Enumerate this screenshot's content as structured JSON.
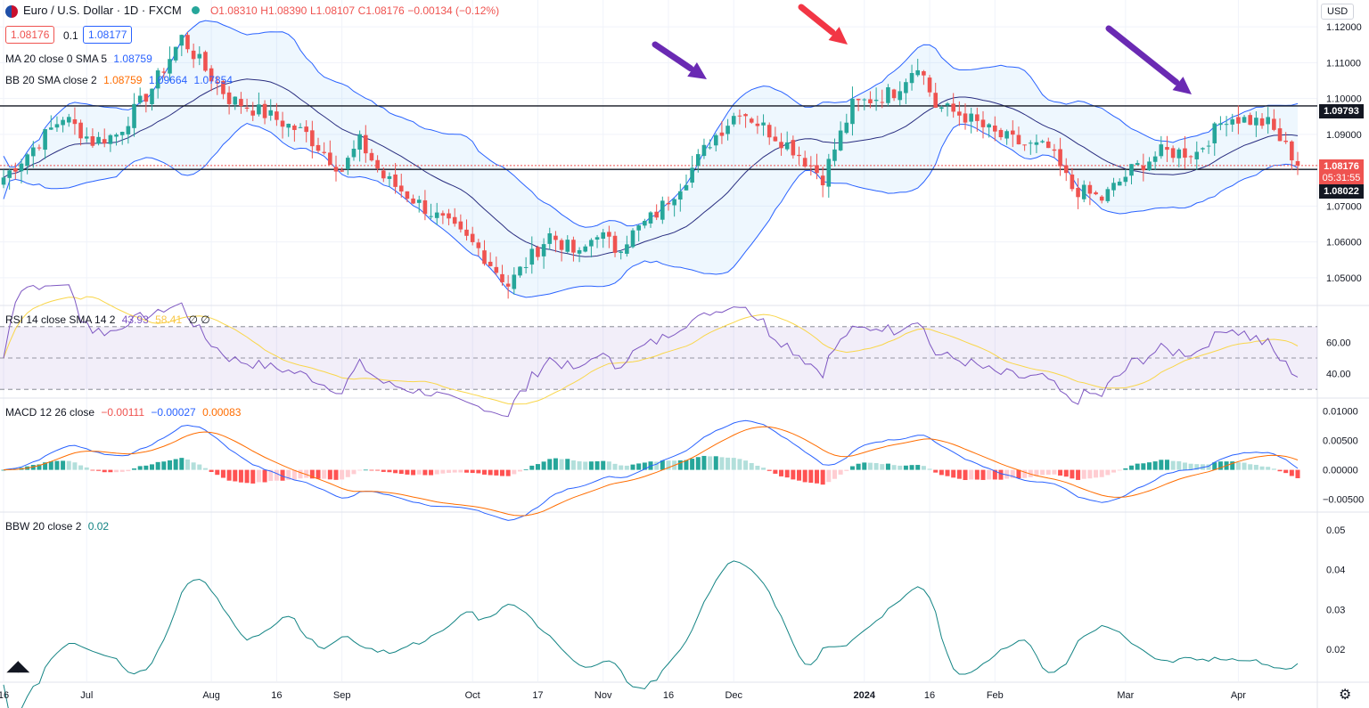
{
  "header": {
    "symbol": "Euro / U.S. Dollar · 1D · FXCM",
    "open": "O1.08310",
    "high": "H1.08390",
    "low": "L1.08107",
    "close": "C1.08176",
    "change": "−0.00134 (−0.12%)",
    "bid": "1.08176",
    "spread": "0.1",
    "ask": "1.08177"
  },
  "indicators": {
    "ma": {
      "label": "MA 20 close 0 SMA 5",
      "value": "1.08759"
    },
    "bb": {
      "label": "BB 20 SMA close 2",
      "v1": "1.08759",
      "v2": "1.09664",
      "v3": "1.07854"
    },
    "rsi": {
      "label": "RSI 14 close SMA 14 2",
      "v1": "43.93",
      "v2": "58.41",
      "v3": "∅ ∅"
    },
    "macd": {
      "label": "MACD 12 26 close",
      "v1": "−0.00111",
      "v2": "−0.00027",
      "v3": "0.00083"
    },
    "bbw": {
      "label": "BBW 20 close 2",
      "v1": "0.02"
    }
  },
  "price_scale": {
    "currency": "USD"
  },
  "price_tags": {
    "resistance": "1.09793",
    "current": "1.08176",
    "countdown": "05:31:55",
    "support": "1.08022"
  },
  "colors": {
    "up": "#26a69a",
    "down": "#ef5350",
    "bb": "#2962ff",
    "ma": "#2a2e80",
    "rsi": "#7e57c2",
    "rsi_ma": "#f9d64a",
    "macd": "#2962ff",
    "signal": "#ff6d00",
    "bbw": "#138484",
    "arrow_purple": "#6a2ab3",
    "arrow_red": "#f23645"
  },
  "chart_data": [
    {
      "type": "candlestick",
      "title": "Euro / U.S. Dollar · 1D · FXCM",
      "x_ticks": [
        "16",
        "Jul",
        "Aug",
        "16",
        "Sep",
        "Oct",
        "17",
        "Nov",
        "16",
        "Dec",
        "2024",
        "16",
        "Feb",
        "Mar",
        "Apr"
      ],
      "y_ticks": [
        1.05,
        1.06,
        1.07,
        1.08,
        1.09,
        1.1,
        1.11,
        1.12
      ],
      "ylim": [
        1.0425,
        1.1275
      ],
      "horizontal_lines": [
        1.09793,
        1.08022
      ],
      "close_path_keypoints": [
        [
          0,
          1.078
        ],
        [
          6,
          1.088
        ],
        [
          10,
          1.095
        ],
        [
          15,
          1.088
        ],
        [
          19,
          1.09
        ],
        [
          25,
          1.103
        ],
        [
          30,
          1.117
        ],
        [
          34,
          1.108
        ],
        [
          38,
          1.1
        ],
        [
          45,
          1.095
        ],
        [
          51,
          1.09
        ],
        [
          57,
          1.08
        ],
        [
          60,
          1.088
        ],
        [
          64,
          1.078
        ],
        [
          73,
          1.067
        ],
        [
          80,
          1.058
        ],
        [
          85,
          1.048
        ],
        [
          92,
          1.062
        ],
        [
          97,
          1.056
        ],
        [
          100,
          1.063
        ],
        [
          103,
          1.058
        ],
        [
          110,
          1.068
        ],
        [
          115,
          1.078
        ],
        [
          119,
          1.088
        ],
        [
          124,
          1.097
        ],
        [
          128,
          1.092
        ],
        [
          133,
          1.086
        ],
        [
          138,
          1.078
        ],
        [
          143,
          1.098
        ],
        [
          150,
          1.102
        ],
        [
          154,
          1.11
        ],
        [
          157,
          1.098
        ],
        [
          162,
          1.095
        ],
        [
          167,
          1.09
        ],
        [
          172,
          1.087
        ],
        [
          176,
          1.086
        ],
        [
          180,
          1.075
        ],
        [
          185,
          1.072
        ],
        [
          190,
          1.08
        ],
        [
          195,
          1.085
        ],
        [
          201,
          1.085
        ],
        [
          206,
          1.095
        ],
        [
          213,
          1.093
        ],
        [
          218,
          1.082
        ]
      ],
      "bollinger": {
        "period": 20,
        "mult": 2
      },
      "sma": {
        "period": 20
      }
    },
    {
      "type": "line",
      "title": "RSI 14 close SMA 14 2",
      "y_ticks": [
        40.0,
        60.0
      ],
      "bands": [
        30,
        50,
        70
      ],
      "series": [
        {
          "name": "RSI"
        },
        {
          "name": "SMA"
        }
      ]
    },
    {
      "type": "bar",
      "title": "MACD 12 26 close",
      "y_ticks": [
        -0.005,
        0.0,
        0.005,
        0.01
      ],
      "series": [
        {
          "name": "MACD"
        },
        {
          "name": "Signal"
        },
        {
          "name": "Histogram"
        }
      ]
    },
    {
      "type": "line",
      "title": "BBW 20 close 2",
      "y_ticks": [
        0.02,
        0.03,
        0.04,
        0.05
      ],
      "series": [
        {
          "name": "BBW"
        }
      ]
    }
  ]
}
